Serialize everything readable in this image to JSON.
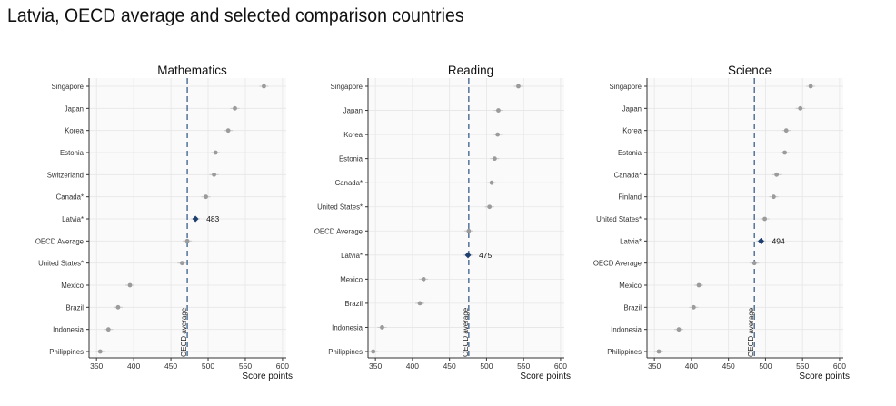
{
  "page": {
    "title": "Latvia, OECD average and selected comparison countries"
  },
  "colors": {
    "highlight": "#1f3f6e",
    "point": "#9b9b9b",
    "ci": "#c8c8c8",
    "oecd_line": "#3c5f8a",
    "plot_bg": "#fafafa",
    "grid": "#e6e6e6"
  },
  "chart_data": [
    {
      "type": "scatter",
      "title": "Mathematics",
      "xlabel": "Score points",
      "xlim": [
        340,
        605
      ],
      "xticks": [
        350,
        400,
        450,
        500,
        550,
        600
      ],
      "categories": [
        "Singapore",
        "Japan",
        "Korea",
        "Estonia",
        "Switzerland",
        "Canada*",
        "Latvia*",
        "OECD Average",
        "United States*",
        "Mexico",
        "Brazil",
        "Indonesia",
        "Philippines"
      ],
      "values": [
        575,
        536,
        527,
        510,
        508,
        497,
        483,
        472,
        465,
        395,
        379,
        366,
        355
      ],
      "highlight": "Latvia*",
      "highlight_label": "483",
      "oecd_average": 472,
      "oecd_average_label": "OECD average"
    },
    {
      "type": "scatter",
      "title": "Reading",
      "xlabel": "Score points",
      "xlim": [
        340,
        605
      ],
      "xticks": [
        350,
        400,
        450,
        500,
        550,
        600
      ],
      "categories": [
        "Singapore",
        "Japan",
        "Korea",
        "Estonia",
        "Canada*",
        "United States*",
        "OECD Average",
        "Latvia*",
        "Mexico",
        "Brazil",
        "Indonesia",
        "Philippines"
      ],
      "values": [
        543,
        516,
        515,
        511,
        507,
        504,
        476,
        475,
        415,
        410,
        359,
        347
      ],
      "highlight": "Latvia*",
      "highlight_label": "475",
      "oecd_average": 476,
      "oecd_average_label": "OECD average"
    },
    {
      "type": "scatter",
      "title": "Science",
      "xlabel": "Score points",
      "xlim": [
        340,
        605
      ],
      "xticks": [
        350,
        400,
        450,
        500,
        550,
        600
      ],
      "categories": [
        "Singapore",
        "Japan",
        "Korea",
        "Estonia",
        "Canada*",
        "Finland",
        "United States*",
        "Latvia*",
        "OECD Average",
        "Mexico",
        "Brazil",
        "Indonesia",
        "Philippines"
      ],
      "values": [
        561,
        547,
        528,
        526,
        515,
        511,
        499,
        494,
        485,
        410,
        403,
        383,
        356
      ],
      "highlight": "Latvia*",
      "highlight_label": "494",
      "oecd_average": 485,
      "oecd_average_label": "OECD average"
    }
  ]
}
